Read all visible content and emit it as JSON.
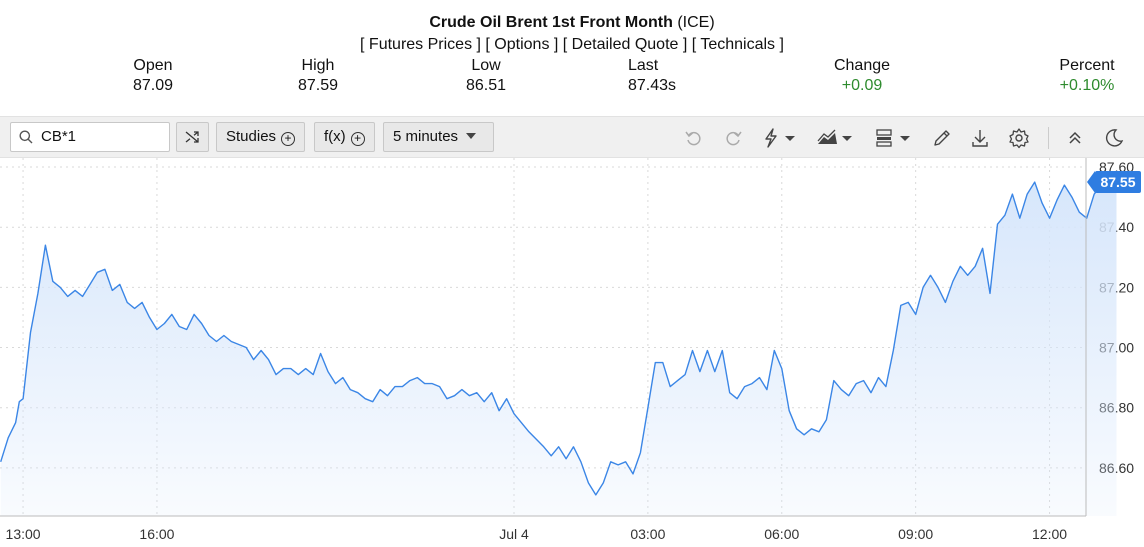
{
  "header": {
    "title_bold": "Crude Oil Brent 1st Front Month",
    "title_exchange": "(ICE)",
    "links": [
      "[ Futures Prices ]",
      "[ Options ]",
      "[ Detailed Quote ]",
      "[ Technicals ]"
    ],
    "stats": [
      {
        "label": "Open",
        "value": "87.09"
      },
      {
        "label": "High",
        "value": "87.59"
      },
      {
        "label": "Low",
        "value": "86.51"
      },
      {
        "label": "Last",
        "value": "87.43s"
      },
      {
        "label": "Change",
        "value": "+0.09"
      },
      {
        "label": "Percent",
        "value": "+0.10%"
      }
    ],
    "up_color": "#2e8b2e"
  },
  "toolbar": {
    "symbol": "CB*1",
    "studies_label": "Studies",
    "fx_label": "f(x)",
    "interval": "5 minutes",
    "icons": [
      "compare-icon",
      "undo-icon",
      "redo-icon",
      "flash-icon",
      "chart-style-icon",
      "layout-icon",
      "pencil-icon",
      "download-icon",
      "settings-icon",
      "collapse-icon",
      "dark-mode-icon"
    ]
  },
  "chart_data": {
    "type": "area",
    "line_color": "#3b86e6",
    "fill_color": "#d6e6fb",
    "ylim": [
      86.44,
      87.63
    ],
    "yticks": [
      87.6,
      87.4,
      87.2,
      87.0,
      86.8,
      86.6
    ],
    "ytick_labels": [
      "87.60",
      "87.40",
      "87.20",
      "87.00",
      "86.80",
      "86.60"
    ],
    "xtick_labels": [
      "13:00",
      "16:00",
      "Jul 4",
      "03:00",
      "06:00",
      "09:00",
      "12:00"
    ],
    "last_value": "87.55",
    "grid": true,
    "points": [
      [
        "12:30",
        86.62
      ],
      [
        "12:40",
        86.7
      ],
      [
        "12:50",
        86.75
      ],
      [
        "12:55",
        86.82
      ],
      [
        "13:00",
        86.83
      ],
      [
        "13:10",
        87.05
      ],
      [
        "13:20",
        87.18
      ],
      [
        "13:30",
        87.34
      ],
      [
        "13:40",
        87.22
      ],
      [
        "13:50",
        87.2
      ],
      [
        "14:00",
        87.17
      ],
      [
        "14:10",
        87.19
      ],
      [
        "14:20",
        87.17
      ],
      [
        "14:30",
        87.21
      ],
      [
        "14:40",
        87.25
      ],
      [
        "14:50",
        87.26
      ],
      [
        "15:00",
        87.19
      ],
      [
        "15:10",
        87.21
      ],
      [
        "15:20",
        87.15
      ],
      [
        "15:30",
        87.13
      ],
      [
        "15:40",
        87.15
      ],
      [
        "15:50",
        87.1
      ],
      [
        "16:00",
        87.06
      ],
      [
        "16:10",
        87.08
      ],
      [
        "16:20",
        87.11
      ],
      [
        "16:30",
        87.07
      ],
      [
        "16:40",
        87.06
      ],
      [
        "16:50",
        87.11
      ],
      [
        "17:00",
        87.08
      ],
      [
        "17:10",
        87.04
      ],
      [
        "17:20",
        87.02
      ],
      [
        "17:30",
        87.04
      ],
      [
        "17:40",
        87.02
      ],
      [
        "17:50",
        87.01
      ],
      [
        "18:00",
        87.0
      ],
      [
        "18:10",
        86.96
      ],
      [
        "18:20",
        86.99
      ],
      [
        "18:30",
        86.96
      ],
      [
        "18:40",
        86.91
      ],
      [
        "18:50",
        86.93
      ],
      [
        "19:00",
        86.93
      ],
      [
        "19:10",
        86.91
      ],
      [
        "19:20",
        86.93
      ],
      [
        "19:30",
        86.91
      ],
      [
        "19:40",
        86.98
      ],
      [
        "19:50",
        86.92
      ],
      [
        "20:00",
        86.88
      ],
      [
        "20:10",
        86.9
      ],
      [
        "20:20",
        86.86
      ],
      [
        "20:30",
        86.85
      ],
      [
        "20:40",
        86.83
      ],
      [
        "20:50",
        86.82
      ],
      [
        "21:00",
        86.86
      ],
      [
        "21:10",
        86.84
      ],
      [
        "21:20",
        86.87
      ],
      [
        "21:30",
        86.87
      ],
      [
        "21:40",
        86.89
      ],
      [
        "21:50",
        86.9
      ],
      [
        "22:00",
        86.88
      ],
      [
        "22:10",
        86.88
      ],
      [
        "22:20",
        86.87
      ],
      [
        "22:30",
        86.83
      ],
      [
        "22:40",
        86.84
      ],
      [
        "22:50",
        86.86
      ],
      [
        "23:00",
        86.84
      ],
      [
        "23:10",
        86.85
      ],
      [
        "23:20",
        86.82
      ],
      [
        "23:30",
        86.85
      ],
      [
        "23:40",
        86.79
      ],
      [
        "23:50",
        86.83
      ],
      [
        "00:00",
        86.78
      ],
      [
        "00:20",
        86.72
      ],
      [
        "00:40",
        86.67
      ],
      [
        "00:50",
        86.64
      ],
      [
        "01:00",
        86.67
      ],
      [
        "01:10",
        86.63
      ],
      [
        "01:20",
        86.67
      ],
      [
        "01:30",
        86.62
      ],
      [
        "01:40",
        86.55
      ],
      [
        "01:50",
        86.51
      ],
      [
        "02:00",
        86.55
      ],
      [
        "02:10",
        86.62
      ],
      [
        "02:20",
        86.61
      ],
      [
        "02:30",
        86.62
      ],
      [
        "02:40",
        86.58
      ],
      [
        "02:50",
        86.65
      ],
      [
        "03:00",
        86.8
      ],
      [
        "03:10",
        86.95
      ],
      [
        "03:20",
        86.95
      ],
      [
        "03:30",
        86.87
      ],
      [
        "03:40",
        86.89
      ],
      [
        "03:50",
        86.91
      ],
      [
        "04:00",
        86.99
      ],
      [
        "04:10",
        86.92
      ],
      [
        "04:20",
        86.99
      ],
      [
        "04:30",
        86.92
      ],
      [
        "04:40",
        86.99
      ],
      [
        "04:50",
        86.85
      ],
      [
        "05:00",
        86.83
      ],
      [
        "05:10",
        86.87
      ],
      [
        "05:20",
        86.88
      ],
      [
        "05:30",
        86.9
      ],
      [
        "05:40",
        86.86
      ],
      [
        "05:50",
        86.99
      ],
      [
        "06:00",
        86.93
      ],
      [
        "06:10",
        86.79
      ],
      [
        "06:20",
        86.73
      ],
      [
        "06:30",
        86.71
      ],
      [
        "06:40",
        86.73
      ],
      [
        "06:50",
        86.72
      ],
      [
        "07:00",
        86.76
      ],
      [
        "07:10",
        86.89
      ],
      [
        "07:20",
        86.86
      ],
      [
        "07:30",
        86.84
      ],
      [
        "07:40",
        86.88
      ],
      [
        "07:50",
        86.89
      ],
      [
        "08:00",
        86.85
      ],
      [
        "08:10",
        86.9
      ],
      [
        "08:20",
        86.87
      ],
      [
        "08:30",
        86.99
      ],
      [
        "08:40",
        87.14
      ],
      [
        "08:50",
        87.15
      ],
      [
        "09:00",
        87.11
      ],
      [
        "09:10",
        87.2
      ],
      [
        "09:20",
        87.24
      ],
      [
        "09:30",
        87.2
      ],
      [
        "09:40",
        87.15
      ],
      [
        "09:50",
        87.22
      ],
      [
        "10:00",
        87.27
      ],
      [
        "10:10",
        87.24
      ],
      [
        "10:20",
        87.27
      ],
      [
        "10:30",
        87.33
      ],
      [
        "10:40",
        87.18
      ],
      [
        "10:50",
        87.41
      ],
      [
        "11:00",
        87.44
      ],
      [
        "11:10",
        87.51
      ],
      [
        "11:20",
        87.43
      ],
      [
        "11:30",
        87.51
      ],
      [
        "11:40",
        87.55
      ],
      [
        "11:50",
        87.48
      ],
      [
        "12:00",
        87.43
      ],
      [
        "12:10",
        87.49
      ],
      [
        "12:20",
        87.54
      ],
      [
        "12:30",
        87.5
      ],
      [
        "12:40",
        87.45
      ],
      [
        "12:50",
        87.43
      ],
      [
        "13:00",
        87.51
      ],
      [
        "13:10",
        87.54
      ],
      [
        "13:20",
        87.57
      ],
      [
        "13:30",
        87.55
      ]
    ]
  }
}
